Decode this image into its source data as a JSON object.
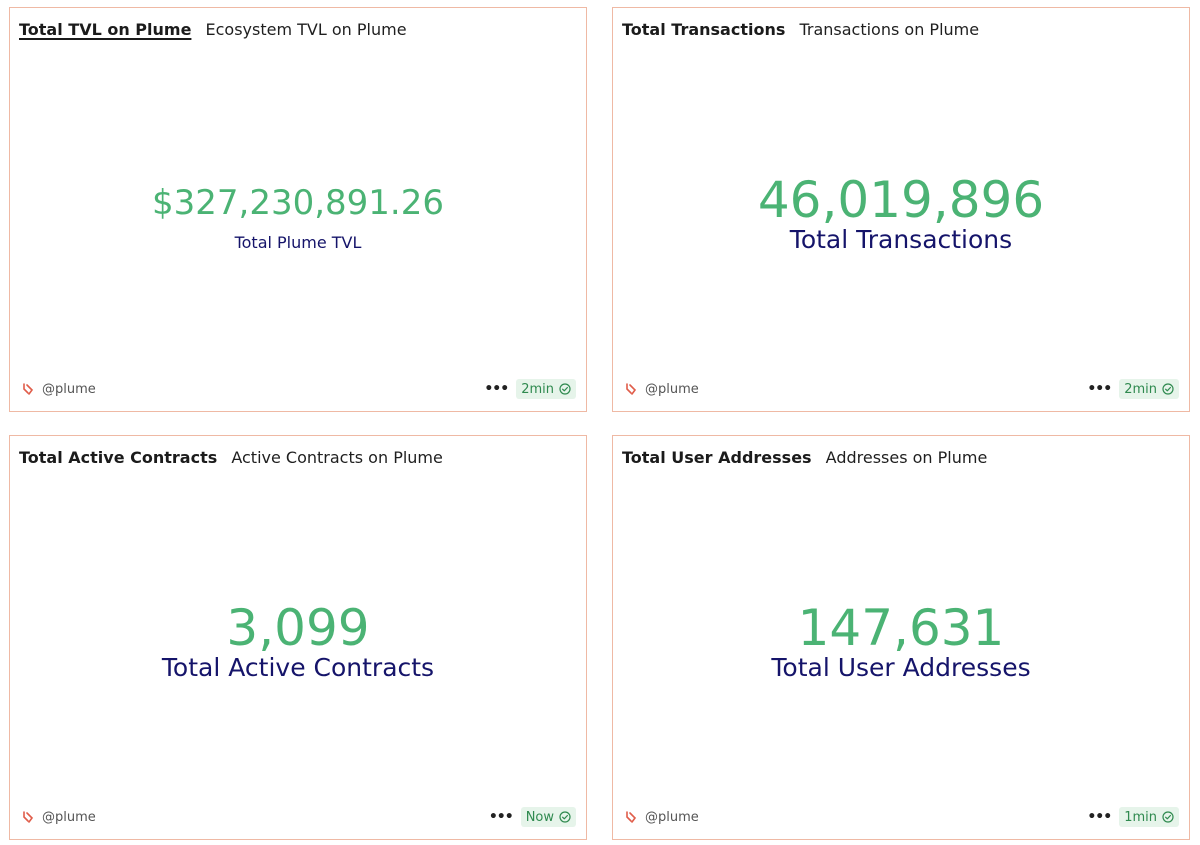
{
  "colors": {
    "card_border": "#efb9a4",
    "value_green": "#4bb374",
    "label_navy": "#15146a",
    "badge_bg": "#e6f4ea",
    "badge_text": "#2f8a4f"
  },
  "cards": [
    {
      "title": "Total TVL on Plume",
      "subtitle": "Ecosystem TVL on Plume",
      "value": "$327,230,891.26",
      "label": "Total Plume TVL",
      "owner": "@plume",
      "refresh": "2min",
      "owner_icon": "dune-logo-icon",
      "more_icon": "more-options-icon",
      "status_icon": "check-circle-icon"
    },
    {
      "title": "Total Transactions",
      "subtitle": "Transactions on Plume",
      "value": "46,019,896",
      "label": "Total Transactions",
      "owner": "@plume",
      "refresh": "2min",
      "owner_icon": "dune-logo-icon",
      "more_icon": "more-options-icon",
      "status_icon": "check-circle-icon"
    },
    {
      "title": "Total Active Contracts",
      "subtitle": "Active Contracts on Plume",
      "value": "3,099",
      "label": "Total Active Contracts",
      "owner": "@plume",
      "refresh": "Now",
      "owner_icon": "dune-logo-icon",
      "more_icon": "more-options-icon",
      "status_icon": "check-circle-icon"
    },
    {
      "title": "Total User Addresses",
      "subtitle": "Addresses on Plume",
      "value": "147,631",
      "label": "Total User Addresses",
      "owner": "@plume",
      "refresh": "1min",
      "owner_icon": "dune-logo-icon",
      "more_icon": "more-options-icon",
      "status_icon": "check-circle-icon"
    }
  ]
}
